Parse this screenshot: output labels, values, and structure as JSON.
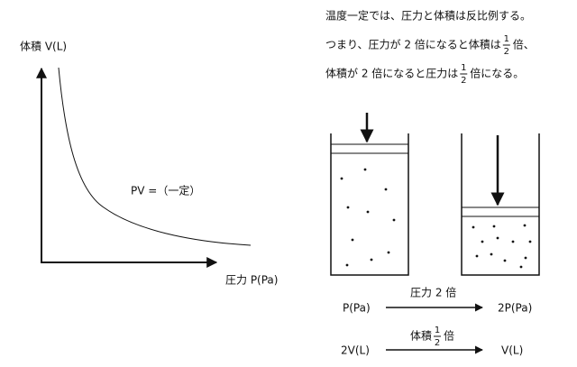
{
  "explanation": {
    "line1": "温度一定では、圧力と体積は反比例する。",
    "line2": {
      "before": "つまり、圧力が 2 倍になると体積は",
      "numerator": "1",
      "denominator": "2",
      "after": "倍、"
    },
    "line3": {
      "before": "体積が 2 倍になると圧力は",
      "numerator": "1",
      "denominator": "2",
      "after": "倍になる。"
    }
  },
  "graph": {
    "y_label": "体積 V(L)",
    "curve_label": "PV =（一定）",
    "x_label": "圧力 P(Pa)"
  },
  "transitions": [
    {
      "from": "P(Pa)",
      "label": "圧力 2 倍",
      "to": "2P(Pa)"
    },
    {
      "from": "2V(L)",
      "label": {
        "before": "体積",
        "numerator": "1",
        "denominator": "2",
        "after": "倍"
      },
      "to": "V(L)"
    }
  ]
}
